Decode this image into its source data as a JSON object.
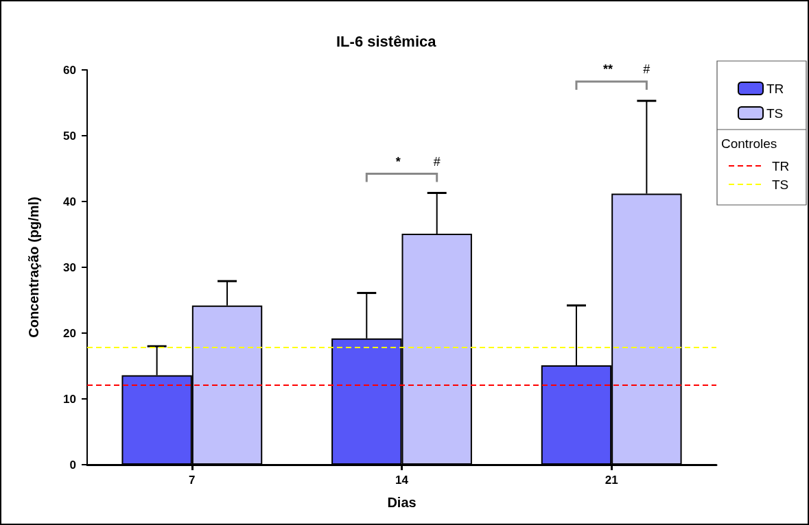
{
  "chart_data": {
    "type": "bar",
    "title": "IL-6 sistêmica",
    "xlabel": "Dias",
    "ylabel": "Concentração (pg/ml)",
    "categories": [
      "7",
      "14",
      "21"
    ],
    "series": [
      {
        "name": "TR",
        "color": "#5757f8",
        "values": [
          13.6,
          19.2,
          15.1
        ],
        "errors": [
          [
            13.6,
            18.0
          ],
          [
            19.2,
            26.1
          ],
          [
            15.1,
            24.2
          ]
        ]
      },
      {
        "name": "TS",
        "color": "#c0c0fc",
        "values": [
          24.2,
          35.1,
          41.2
        ],
        "errors": [
          [
            24.2,
            27.9
          ],
          [
            35.1,
            41.3
          ],
          [
            41.2,
            55.3
          ]
        ]
      }
    ],
    "ylim": [
      0,
      60
    ],
    "yticks": [
      0,
      10,
      20,
      30,
      40,
      50,
      60
    ],
    "grid": false,
    "legend": "top right",
    "legend_title": "Controles",
    "ref_lines": [
      {
        "axis": "y",
        "value": 12.1,
        "label": "TR",
        "color": "#ff0000",
        "line_style": "dashed"
      },
      {
        "axis": "y",
        "value": 17.8,
        "label": "TS",
        "color": "#ffff00",
        "line_style": "dashed"
      }
    ],
    "annotations": [
      "*",
      "#",
      "**",
      "#"
    ]
  }
}
